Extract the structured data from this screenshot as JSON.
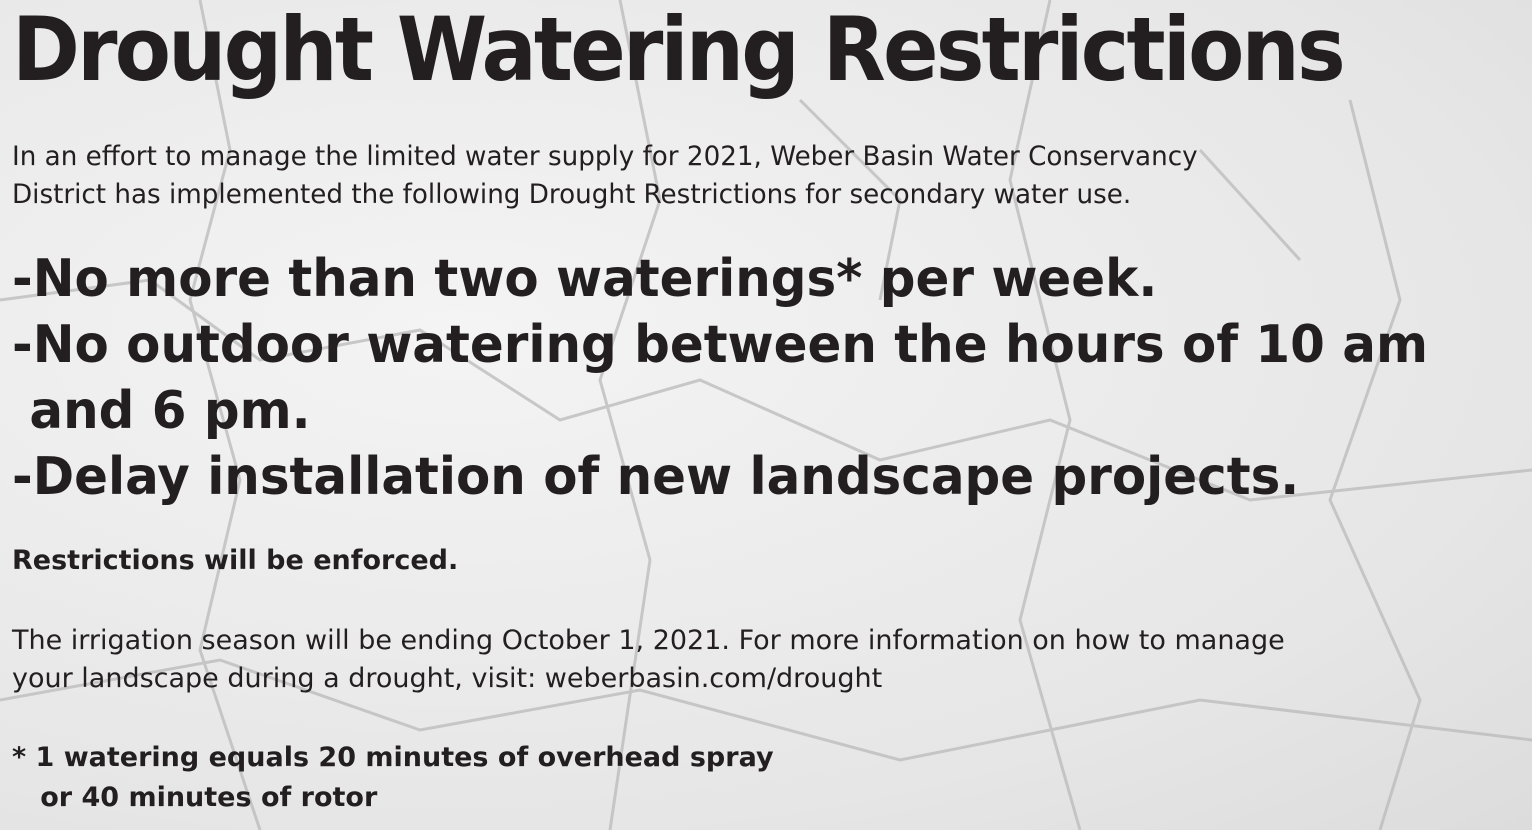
{
  "title": "Drought Watering Restrictions",
  "intro": [
    "In an effort to manage the limited water supply for 2021, Weber Basin Water Conservancy",
    "District has implemented the following Drought Restrictions for secondary water use."
  ],
  "restrictions": [
    "-No more than two waterings* per week.",
    "-No outdoor watering between the hours of 10 am",
    " and 6 pm.",
    "-Delay installation of new landscape projects."
  ],
  "enforced": "Restrictions will be enforced.",
  "season": [
    "The irrigation season will be ending October 1, 2021. For more information on how to manage",
    "your landscape during a drought, visit: weberbasin.com/drought"
  ],
  "footnote": [
    "* 1 watering equals 20 minutes of overhead spray",
    "   or 40 minutes of rotor"
  ]
}
